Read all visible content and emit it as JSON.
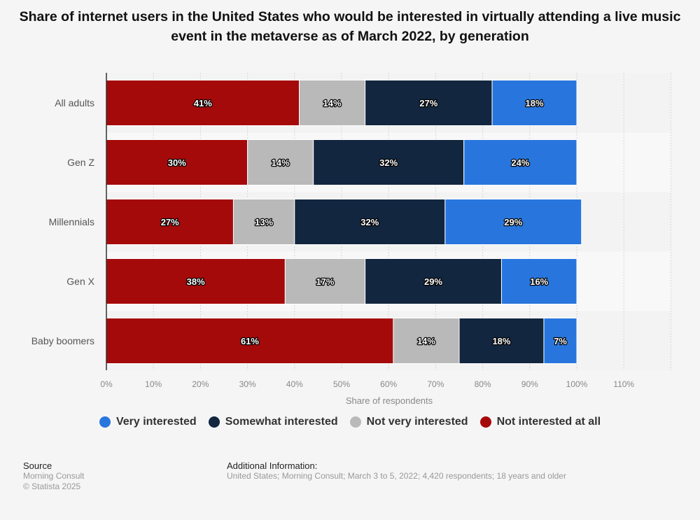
{
  "chart_data": {
    "type": "bar",
    "orientation": "horizontal",
    "stacked": true,
    "title": "Share of internet users in the United States who would be interested in virtually attending a live music event in the metaverse as of March 2022, by generation",
    "categories": [
      "All adults",
      "Gen Z",
      "Millennials",
      "Gen X",
      "Baby boomers"
    ],
    "series": [
      {
        "name": "Not interested at all",
        "color": "#a50a0a",
        "values": [
          41,
          30,
          27,
          38,
          61
        ]
      },
      {
        "name": "Not very interested",
        "color": "#b9b9b9",
        "values": [
          14,
          14,
          13,
          17,
          14
        ]
      },
      {
        "name": "Somewhat interested",
        "color": "#12263f",
        "values": [
          27,
          32,
          32,
          29,
          18
        ]
      },
      {
        "name": "Very interested",
        "color": "#2876dd",
        "values": [
          18,
          24,
          29,
          16,
          7
        ]
      }
    ],
    "value_suffix": "%",
    "xlabel": "Share of respondents",
    "ylabel": "",
    "xlim": [
      0,
      120
    ],
    "xticks": [
      "0%",
      "10%",
      "20%",
      "30%",
      "40%",
      "50%",
      "60%",
      "70%",
      "80%",
      "90%",
      "100%",
      "110%"
    ],
    "grid": true,
    "legend_position": "bottom",
    "legend_order": [
      "Very interested",
      "Somewhat interested",
      "Not very interested",
      "Not interested at all"
    ]
  },
  "legend": [
    {
      "label": "Very interested",
      "color": "#2876dd"
    },
    {
      "label": "Somewhat interested",
      "color": "#12263f"
    },
    {
      "label": "Not very interested",
      "color": "#b9b9b9"
    },
    {
      "label": "Not interested at all",
      "color": "#a50a0a"
    }
  ],
  "footer": {
    "source_heading": "Source",
    "source_name": "Morning Consult",
    "copyright": "© Statista 2025",
    "additional_heading": "Additional Information:",
    "additional_text": "United States; Morning Consult; March 3 to 5, 2022; 4,420 respondents; 18 years and older"
  }
}
